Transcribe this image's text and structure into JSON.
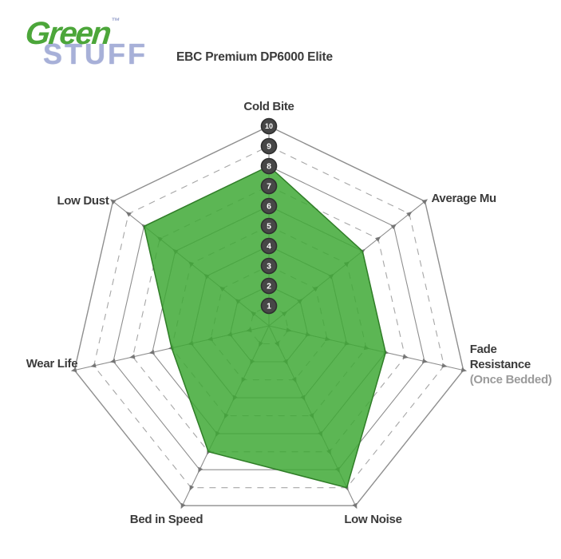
{
  "logo": {
    "word1": "Green",
    "tm": "™",
    "word2": "STUFF",
    "word1_color": "#4ca63a",
    "word2_color": "#a7b0d8"
  },
  "header": {
    "title": "EBC Premium DP6000 Elite"
  },
  "chart_data": {
    "type": "radar",
    "title": "EBC Premium DP6000 Elite",
    "axes_clockwise_from_top": [
      "Cold Bite",
      "Average Mu",
      "Fade Resistance",
      "Low Noise",
      "Bed in Speed",
      "Wear Life",
      "Low Dust"
    ],
    "axes": [
      {
        "label": "Cold Bite",
        "value": 8
      },
      {
        "label": "Average Mu",
        "value": 6
      },
      {
        "label": "Fade Resistance",
        "sublabel": "(Once Bedded)",
        "value": 6
      },
      {
        "label": "Low Noise",
        "value": 9
      },
      {
        "label": "Bed in Speed",
        "value": 7
      },
      {
        "label": "Wear Life",
        "value": 5
      },
      {
        "label": "Low Dust",
        "value": 8
      }
    ],
    "series": [
      {
        "name": "EBC Premium DP6000 Elite",
        "values": [
          8,
          6,
          6,
          9,
          7,
          5,
          8
        ]
      }
    ],
    "scale": {
      "min": 0,
      "max": 10,
      "ticks": [
        "1",
        "2",
        "3",
        "4",
        "5",
        "6",
        "7",
        "8",
        "9",
        "10"
      ],
      "tick_axis": "Cold Bite"
    },
    "grid": {
      "rings": 10,
      "even_rings": "solid",
      "odd_rings": "dashed",
      "shape": "heptagon",
      "legend": "none"
    },
    "colors": {
      "fill_green": "#3fa936",
      "polygon_stroke": "#2f7d27",
      "grid_solid": "#8e8e8e",
      "grid_dashed": "#a6a6a6",
      "tick_marker": "#6f6f6f",
      "scale_circle_fill": "#474747",
      "scale_circle_stroke": "#2f2f2f",
      "scale_text": "#ffffff",
      "label_text": "#3b3b3b",
      "sublabel_text": "#9b9b9b"
    }
  }
}
